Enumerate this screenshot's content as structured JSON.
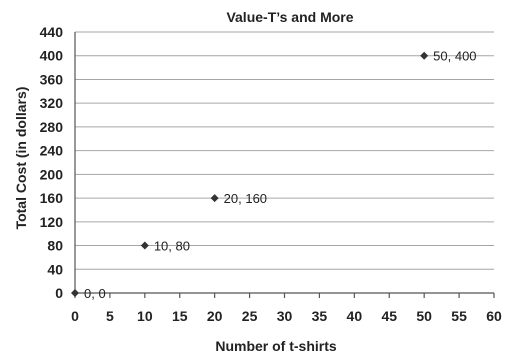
{
  "chart_data": {
    "type": "scatter",
    "title": "Value-T’s and More",
    "xlabel": "Number of t-shirts",
    "ylabel": "Total Cost (in dollars)",
    "xlim": [
      0,
      60
    ],
    "ylim": [
      0,
      440
    ],
    "x_ticks": [
      0,
      5,
      10,
      15,
      20,
      25,
      30,
      35,
      40,
      45,
      50,
      55,
      60
    ],
    "y_ticks": [
      0,
      40,
      80,
      120,
      160,
      200,
      240,
      280,
      320,
      360,
      400,
      440
    ],
    "grid": "horizontal",
    "marker": "diamond",
    "points": [
      {
        "x": 0,
        "y": 0,
        "label": "0, 0"
      },
      {
        "x": 10,
        "y": 80,
        "label": "10, 80"
      },
      {
        "x": 20,
        "y": 160,
        "label": "20, 160"
      },
      {
        "x": 50,
        "y": 400,
        "label": "50, 400"
      }
    ]
  }
}
